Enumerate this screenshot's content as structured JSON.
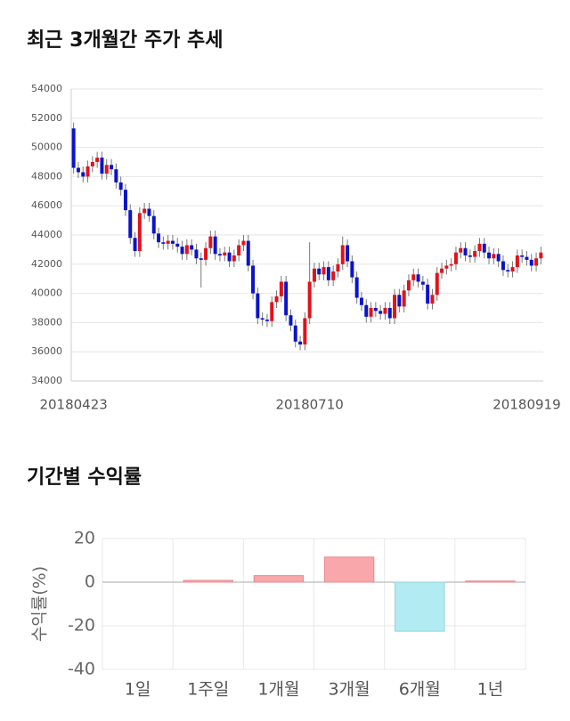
{
  "chart_data": [
    {
      "type": "candlestick",
      "title": "최근 3개월간 주가 추세",
      "categories": [
        "20180423",
        null,
        null,
        null,
        null,
        null,
        null,
        null,
        null,
        null,
        null,
        null,
        null,
        null,
        null,
        null,
        null,
        null,
        null,
        null,
        null,
        null,
        null,
        null,
        null,
        null,
        null,
        null,
        null,
        null,
        null,
        null,
        null,
        null,
        null,
        null,
        null,
        null,
        null,
        null,
        null,
        null,
        null,
        null,
        null,
        null,
        null,
        null,
        null,
        null,
        "20180710",
        null,
        null,
        null,
        null,
        null,
        null,
        null,
        null,
        null,
        null,
        null,
        null,
        null,
        null,
        null,
        null,
        null,
        null,
        null,
        null,
        null,
        null,
        null,
        null,
        null,
        null,
        null,
        null,
        null,
        null,
        null,
        null,
        null,
        null,
        null,
        null,
        null,
        null,
        null,
        null,
        null,
        null,
        null,
        null,
        null,
        "20180919",
        null,
        null,
        null
      ],
      "open": [
        51300,
        48600,
        48300,
        48000,
        48700,
        49000,
        49300,
        48200,
        48800,
        48500,
        47600,
        47100,
        45700,
        43800,
        42900,
        45500,
        45800,
        45300,
        44100,
        43500,
        43400,
        43600,
        43400,
        43200,
        42700,
        43300,
        43000,
        42400,
        42300,
        43100,
        43900,
        42700,
        42600,
        42800,
        42200,
        42600,
        43300,
        43600,
        41900,
        40000,
        38300,
        38200,
        38100,
        39400,
        39800,
        40800,
        38500,
        37800,
        36700,
        36500,
        38300,
        40800,
        41700,
        41300,
        41800,
        40900,
        41500,
        42000,
        43300,
        42200,
        41100,
        39700,
        39200,
        38400,
        39000,
        38800,
        38600,
        39000,
        38300,
        39900,
        39100,
        40200,
        40900,
        41300,
        40800,
        40600,
        39300,
        39900,
        41400,
        41700,
        41900,
        42000,
        42800,
        43100,
        42600,
        42500,
        42900,
        43400,
        42800,
        42400,
        42700,
        42200,
        41600,
        41500,
        41800,
        42600,
        42500,
        42300,
        41900,
        42400
      ],
      "high": [
        51700,
        49000,
        48700,
        49100,
        49400,
        49700,
        49700,
        49200,
        49200,
        48900,
        48000,
        47500,
        46100,
        44200,
        45900,
        46200,
        46200,
        45700,
        44500,
        43900,
        44000,
        44000,
        43800,
        43600,
        43700,
        43700,
        43400,
        42800,
        43500,
        44300,
        44300,
        43100,
        43200,
        43200,
        43000,
        43700,
        44000,
        44000,
        42300,
        40400,
        38700,
        38600,
        39800,
        40200,
        41200,
        41200,
        38900,
        38200,
        37100,
        38700,
        43500,
        42100,
        42100,
        42200,
        42200,
        41900,
        42400,
        43900,
        43700,
        42600,
        41500,
        40100,
        39600,
        39400,
        39400,
        39200,
        39400,
        39400,
        40300,
        40300,
        40600,
        41300,
        41700,
        41700,
        41200,
        41000,
        40300,
        41800,
        42100,
        42300,
        42400,
        43200,
        43500,
        43500,
        43000,
        43300,
        43800,
        43800,
        43200,
        43100,
        43100,
        42600,
        42000,
        42200,
        43000,
        43000,
        42900,
        42700,
        42800,
        43200
      ],
      "low": [
        48200,
        47900,
        47600,
        47600,
        48300,
        48600,
        47800,
        47800,
        48100,
        47200,
        46700,
        45300,
        43400,
        42500,
        42500,
        45100,
        44900,
        43700,
        43100,
        43000,
        43000,
        43000,
        42800,
        42300,
        42300,
        42600,
        42000,
        40400,
        41900,
        42700,
        42300,
        42200,
        42200,
        41800,
        41800,
        42200,
        42900,
        41500,
        39600,
        37900,
        37800,
        37700,
        37700,
        39000,
        39400,
        38100,
        37400,
        36300,
        36100,
        36100,
        37900,
        40400,
        40900,
        40900,
        40500,
        40500,
        41100,
        41600,
        41800,
        40700,
        39300,
        38800,
        38000,
        38000,
        38400,
        38200,
        38200,
        37900,
        37900,
        38700,
        38700,
        39800,
        40500,
        40400,
        40200,
        38900,
        38900,
        39500,
        41000,
        41300,
        41500,
        41600,
        42400,
        42200,
        42100,
        42100,
        42500,
        42400,
        42000,
        42000,
        41800,
        41200,
        41100,
        41100,
        41400,
        42100,
        41900,
        41500,
        41500,
        42000
      ],
      "close": [
        48600,
        48300,
        48000,
        48700,
        49000,
        49300,
        48200,
        48800,
        48500,
        47600,
        47100,
        45700,
        43800,
        42900,
        45500,
        45800,
        45300,
        44100,
        43500,
        43400,
        43600,
        43400,
        43200,
        42700,
        43300,
        43000,
        42400,
        42300,
        43100,
        43900,
        42700,
        42600,
        42800,
        42200,
        42600,
        43300,
        43600,
        41900,
        40000,
        38300,
        38200,
        38100,
        39400,
        39800,
        40800,
        38500,
        37800,
        36700,
        36500,
        38300,
        40800,
        41700,
        41300,
        41800,
        40900,
        41500,
        42000,
        43300,
        42200,
        41100,
        39700,
        39200,
        38400,
        39000,
        38800,
        38600,
        39000,
        38300,
        39900,
        39100,
        40200,
        40900,
        41300,
        40800,
        40600,
        39300,
        39900,
        41400,
        41700,
        41900,
        42000,
        42800,
        43100,
        42600,
        42500,
        42900,
        43400,
        42800,
        42400,
        42700,
        42200,
        41600,
        41500,
        41800,
        42600,
        42500,
        42300,
        41900,
        42400,
        42800
      ],
      "up_color": "#e0131b",
      "down_color": "#0a14c8",
      "ylim": [
        34000,
        54000
      ],
      "yticks": [
        34000,
        36000,
        38000,
        40000,
        42000,
        44000,
        46000,
        48000,
        50000,
        52000,
        54000
      ],
      "grid": true
    },
    {
      "type": "bar",
      "title": "기간별 수익률",
      "y_label": "수익률(%)",
      "categories": [
        "1일",
        "1주일",
        "1개월",
        "3개월",
        "6개월",
        "1년"
      ],
      "values": [
        0,
        0.8,
        3,
        11.5,
        -22.5,
        0.5
      ],
      "color": "#f9a7aa",
      "negative_color": "#b3ebf3",
      "ylim": [
        -40,
        20
      ],
      "yticks": [
        -40,
        -20,
        0,
        20
      ],
      "grid": true
    }
  ]
}
